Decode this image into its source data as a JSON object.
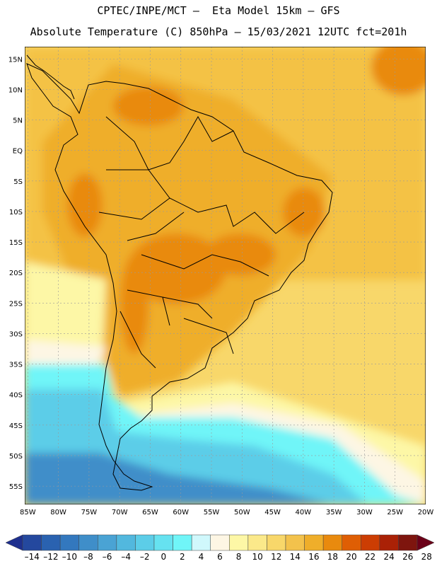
{
  "header": {
    "line1": "CPTEC/INPE/MCT –  Eta Model 15km – GFS",
    "line2": "Absolute Temperature (C) 850hPa – 15/03/2021 12UTC fct=201h"
  },
  "axes": {
    "lat_labels": [
      "15N",
      "10N",
      "5N",
      "EQ",
      "5S",
      "10S",
      "15S",
      "20S",
      "25S",
      "30S",
      "35S",
      "40S",
      "45S",
      "50S",
      "55S"
    ],
    "lon_labels": [
      "85W",
      "80W",
      "75W",
      "70W",
      "65W",
      "60W",
      "55W",
      "50W",
      "45W",
      "40W",
      "35W",
      "30W",
      "25W",
      "20W"
    ],
    "lat_range": [
      17,
      -58
    ],
    "lon_range": [
      -85.5,
      -20
    ]
  },
  "colorbar": {
    "labels": [
      "-14",
      "-12",
      "-10",
      "-8",
      "-6",
      "-4",
      "-2",
      "0",
      "2",
      "4",
      "6",
      "8",
      "10",
      "12",
      "14",
      "16",
      "18",
      "20",
      "22",
      "24",
      "26",
      "28"
    ],
    "colors": [
      "#1e2f8e",
      "#24489e",
      "#2a62b0",
      "#3378be",
      "#3f8ec9",
      "#4aa3d4",
      "#52b8de",
      "#5ccde8",
      "#66e2f0",
      "#70f5f8",
      "#d0f8fc",
      "#fdf6e4",
      "#fdf7a6",
      "#fbe98a",
      "#f8d76a",
      "#f3c24c",
      "#efae2a",
      "#e98a0e",
      "#df5e04",
      "#cc3d03",
      "#aa2106",
      "#7e150e",
      "#6b0018"
    ]
  },
  "field_colors": {
    "ocean_north": "#f4c244",
    "ocean_nw": "#f3c44a",
    "land_warm": "#efae2a",
    "land_hot": "#e98a0e",
    "land_hottest": "#df5e04",
    "mid_ocean": "#f8d76a",
    "subtropical": "#fdf7a6",
    "cool": "#fdf6e4",
    "cold_band": "#70f5f8",
    "colder": "#5ccde8",
    "coldest": "#3f8ec9"
  },
  "coast_color": "#000000",
  "border_color": "#000000"
}
